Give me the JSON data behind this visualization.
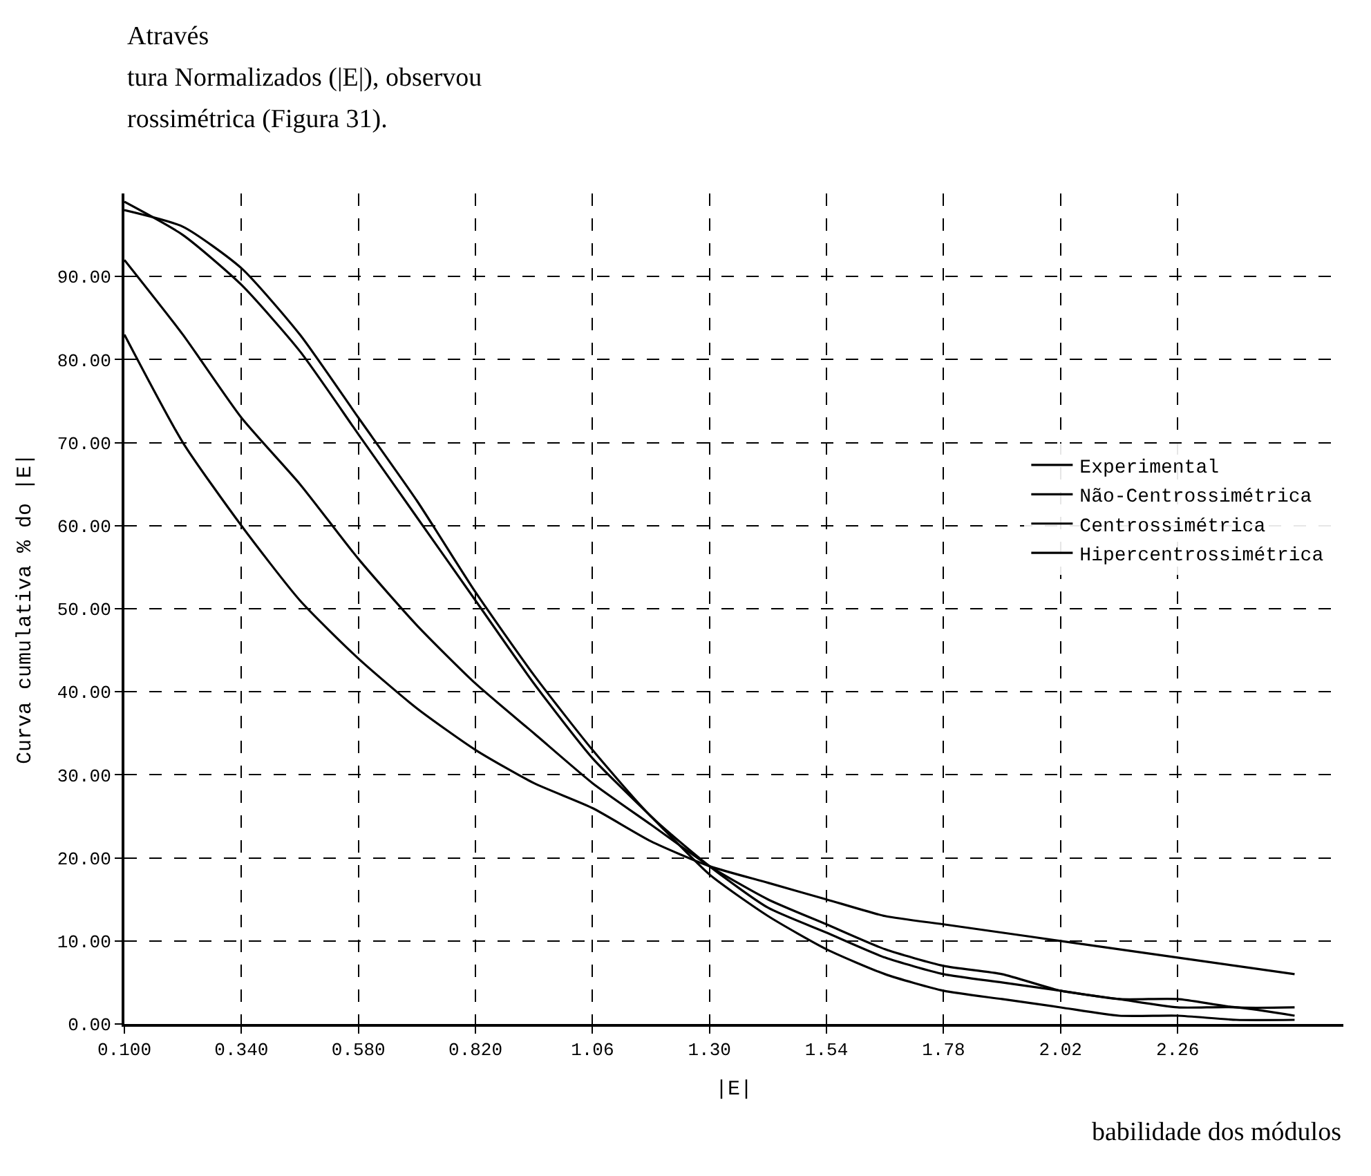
{
  "chart_data": {
    "type": "line",
    "xlabel": "|E|",
    "ylabel": "Curva cumulativa % do |E|",
    "annotations": [
      "Através",
      "tura Normalizados (|E|), observou",
      "rossimétrica (Figura 31).",
      "babilidade dos módulos"
    ],
    "x": [
      0.1,
      0.22,
      0.34,
      0.46,
      0.58,
      0.7,
      0.82,
      0.94,
      1.06,
      1.18,
      1.3,
      1.42,
      1.54,
      1.66,
      1.78,
      1.9,
      2.02,
      2.14,
      2.26,
      2.38,
      2.5
    ],
    "series": [
      {
        "name": "Experimental",
        "color": "#000000",
        "values": [
          98,
          96,
          91,
          83,
          73,
          63,
          52,
          42,
          33,
          25,
          19,
          14,
          11,
          8,
          6,
          5,
          4,
          3,
          3,
          2,
          2
        ]
      },
      {
        "name": "Não-Centrossimétrica",
        "color": "#000000",
        "values": [
          99,
          95,
          89,
          81,
          71,
          61,
          51,
          41,
          32,
          25,
          18,
          13,
          9,
          6,
          4,
          3,
          2,
          1,
          1,
          0.5,
          0.5
        ]
      },
      {
        "name": "Centrossimétrica",
        "color": "#000000",
        "values": [
          92,
          83,
          73,
          65,
          56,
          48,
          41,
          35,
          29,
          24,
          19,
          15,
          12,
          9,
          7,
          6,
          4,
          3,
          2,
          2,
          1
        ]
      },
      {
        "name": "Hipercentrossimétrica",
        "color": "#000000",
        "values": [
          83,
          70,
          60,
          51,
          44,
          38,
          33,
          29,
          26,
          22,
          19,
          17,
          15,
          13,
          12,
          11,
          10,
          9,
          8,
          7,
          6
        ]
      }
    ],
    "xlim": [
      0.1,
      2.6
    ],
    "xticks": [
      {
        "value": 0.1,
        "label": "0.100"
      },
      {
        "value": 0.34,
        "label": "0.340"
      },
      {
        "value": 0.58,
        "label": "0.580"
      },
      {
        "value": 0.82,
        "label": "0.820"
      },
      {
        "value": 1.06,
        "label": "1.06"
      },
      {
        "value": 1.3,
        "label": "1.30"
      },
      {
        "value": 1.54,
        "label": "1.54"
      },
      {
        "value": 1.78,
        "label": "1.78"
      },
      {
        "value": 2.02,
        "label": "2.02"
      },
      {
        "value": 2.26,
        "label": "2.26"
      }
    ],
    "ylim": [
      0,
      100
    ],
    "yticks": [
      {
        "value": 0,
        "label": "0.00"
      },
      {
        "value": 10,
        "label": "10.00"
      },
      {
        "value": 20,
        "label": "20.00"
      },
      {
        "value": 30,
        "label": "30.00"
      },
      {
        "value": 40,
        "label": "40.00"
      },
      {
        "value": 50,
        "label": "50.00"
      },
      {
        "value": 60,
        "label": "60.00"
      },
      {
        "value": 70,
        "label": "70.00"
      },
      {
        "value": 80,
        "label": "80.00"
      },
      {
        "value": 90,
        "label": "90.00"
      }
    ],
    "grid": true,
    "legend": "right",
    "marker": "none",
    "line_style": "solid"
  }
}
